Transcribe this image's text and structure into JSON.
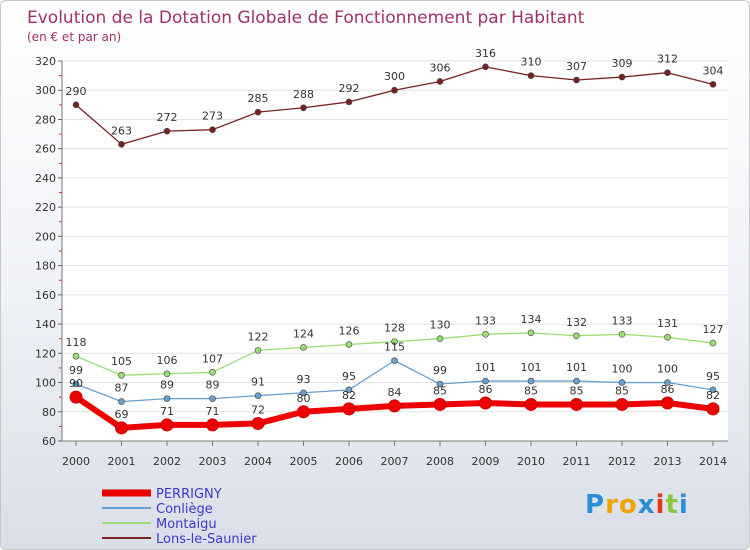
{
  "chart_data": {
    "type": "line",
    "title": "Evolution de la Dotation Globale de Fonctionnement par Habitant",
    "subtitle": "(en € et par an)",
    "categories": [
      "2000",
      "2001",
      "2002",
      "2003",
      "2004",
      "2005",
      "2006",
      "2007",
      "2008",
      "2009",
      "2010",
      "2011",
      "2012",
      "2013",
      "2014"
    ],
    "y_ticks": [
      60,
      80,
      100,
      120,
      140,
      160,
      180,
      200,
      220,
      240,
      260,
      280,
      300,
      320
    ],
    "ylim": [
      60,
      320
    ],
    "grid": "horizontal",
    "legend_position": "bottom-left",
    "series": [
      {
        "name": "PERRIGNY",
        "color": "#ee0000",
        "values": [
          90,
          69,
          71,
          71,
          72,
          80,
          82,
          84,
          85,
          86,
          85,
          85,
          85,
          86,
          82
        ],
        "labels": [
          "90",
          "69",
          "71",
          "71",
          "72",
          "80",
          "82",
          "84",
          "85",
          "86",
          "85",
          "85",
          "85",
          "86",
          "82"
        ]
      },
      {
        "name": "Conliège",
        "color": "#6a9fd0",
        "values": [
          99,
          87,
          89,
          89,
          91,
          93,
          95,
          115,
          99,
          101,
          101,
          101,
          100,
          100,
          95
        ],
        "labels": [
          "99",
          "87",
          "89",
          "89",
          "91",
          "93",
          "95",
          "115",
          "99",
          "101",
          "101",
          "101",
          "100",
          "100",
          "95"
        ]
      },
      {
        "name": "Montaigu",
        "color": "#99dd77",
        "values": [
          118,
          105,
          106,
          107,
          122,
          124,
          126,
          128,
          130,
          133,
          134,
          132,
          133,
          131,
          127
        ],
        "labels": [
          "118",
          "105",
          "106",
          "107",
          "122",
          "124",
          "126",
          "128",
          "130",
          "133",
          "134",
          "132",
          "133",
          "131",
          "127"
        ]
      },
      {
        "name": "Lons-le-Saunier",
        "color": "#772222",
        "values": [
          290,
          263,
          272,
          273,
          285,
          288,
          292,
          300,
          306,
          316,
          310,
          307,
          309,
          312,
          304
        ],
        "labels": [
          "290",
          "263",
          "272",
          "273",
          "285",
          "288",
          "292",
          "300",
          "306",
          "316",
          "310",
          "307",
          "309",
          "312",
          "304"
        ]
      }
    ]
  },
  "logo": {
    "letters": [
      "P",
      "r",
      "o",
      "x",
      "i",
      "t",
      "i"
    ],
    "colors": [
      "#2a8fd8",
      "#f0a400",
      "#f0a400",
      "#2a8fd8",
      "#e23a1a",
      "#8cc63f",
      "#2a8fd8"
    ]
  }
}
